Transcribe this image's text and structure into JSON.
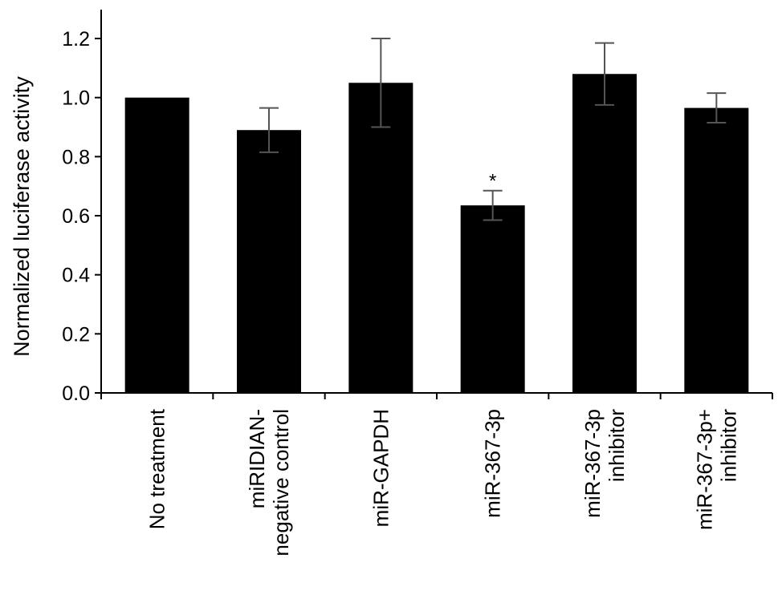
{
  "chart_data": {
    "type": "bar",
    "title": "",
    "xlabel": "",
    "ylabel": "Normalized luciferase activity",
    "ylim": [
      0,
      1.3
    ],
    "yticks": [
      "0.0",
      "0.2",
      "0.4",
      "0.6",
      "0.8",
      "1.0",
      "1.2"
    ],
    "grid": false,
    "categories": [
      [
        "No treatment"
      ],
      [
        "miRIDIAN-",
        "negative control"
      ],
      [
        "miR-GAPDH"
      ],
      [
        "miR-367-3p"
      ],
      [
        "miR-367-3p",
        "inhibitor"
      ],
      [
        "miR-367-3p+",
        "inhibitor"
      ]
    ],
    "values": [
      1.0,
      0.89,
      1.05,
      0.635,
      1.08,
      0.965
    ],
    "error_bars": [
      0.002,
      0.075,
      0.15,
      0.05,
      0.105,
      0.05
    ],
    "annotations": [
      "",
      "",
      "",
      "*",
      "",
      ""
    ],
    "bar_color": "#000000",
    "error_color": "#555555"
  }
}
